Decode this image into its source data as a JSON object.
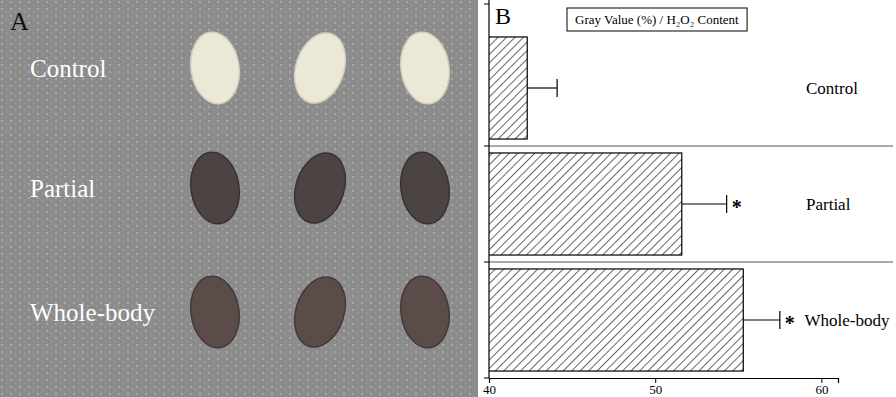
{
  "photo": {
    "panel_label": "A",
    "labels": [
      "Control",
      "Partial",
      "Whole-body"
    ]
  },
  "chart_data": {
    "type": "bar",
    "orientation": "horizontal",
    "panel_label": "B",
    "title": "Gray Value (%) / H₂O₂ Content",
    "categories": [
      "Control",
      "Partial",
      "Whole-body"
    ],
    "values": [
      42.3,
      51.6,
      55.3
    ],
    "errors": [
      1.8,
      2.7,
      2.2
    ],
    "significance": [
      null,
      "*",
      "*"
    ],
    "color": "#000000",
    "xlim": [
      40,
      61
    ],
    "xticks": [
      40,
      50,
      60
    ],
    "grid": false
  }
}
